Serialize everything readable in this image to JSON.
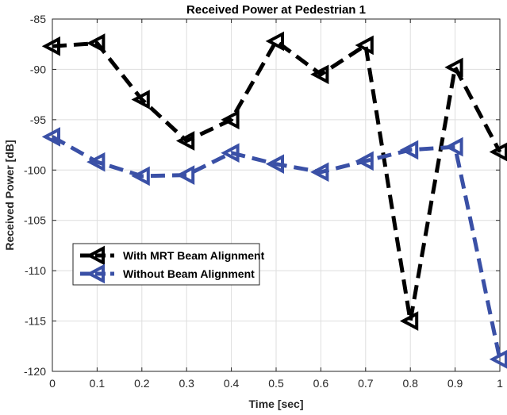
{
  "chart_data": {
    "type": "line",
    "title": "Received Power at Pedestrian 1",
    "xlabel": "Time [sec]",
    "ylabel": "Received Power [dB]",
    "xlim": [
      0,
      1
    ],
    "ylim": [
      -120,
      -85
    ],
    "grid": true,
    "legend_position": "middle-left",
    "x_ticks": [
      0,
      0.1,
      0.2,
      0.3,
      0.4,
      0.5,
      0.6,
      0.7,
      0.8,
      0.9,
      1
    ],
    "x_tick_labels": [
      "0",
      "0.1",
      "0.2",
      "0.3",
      "0.4",
      "0.5",
      "0.6",
      "0.7",
      "0.8",
      "0.9",
      "1"
    ],
    "y_ticks": [
      -120,
      -115,
      -110,
      -105,
      -100,
      -95,
      -90,
      -85
    ],
    "y_tick_labels": [
      "-120",
      "-115",
      "-110",
      "-105",
      "-100",
      "-95",
      "-90",
      "-85"
    ],
    "x": [
      0,
      0.1,
      0.2,
      0.3,
      0.4,
      0.5,
      0.6,
      0.7,
      0.8,
      0.9,
      1
    ],
    "series": [
      {
        "name": "With MRT Beam Alignment",
        "color": "#000000",
        "marker": "triangle-left",
        "line_style": "dashed",
        "values": [
          -87.7,
          -87.4,
          -93.0,
          -97.1,
          -95.0,
          -87.2,
          -90.5,
          -87.6,
          -115.0,
          -89.8,
          -98.2
        ]
      },
      {
        "name": "Without Beam Alignment",
        "color": "#3a50a6",
        "marker": "triangle-left",
        "line_style": "dashed",
        "values": [
          -96.7,
          -99.2,
          -100.6,
          -100.5,
          -98.3,
          -99.4,
          -100.2,
          -99.1,
          -98.0,
          -97.7,
          -118.8
        ]
      }
    ]
  }
}
